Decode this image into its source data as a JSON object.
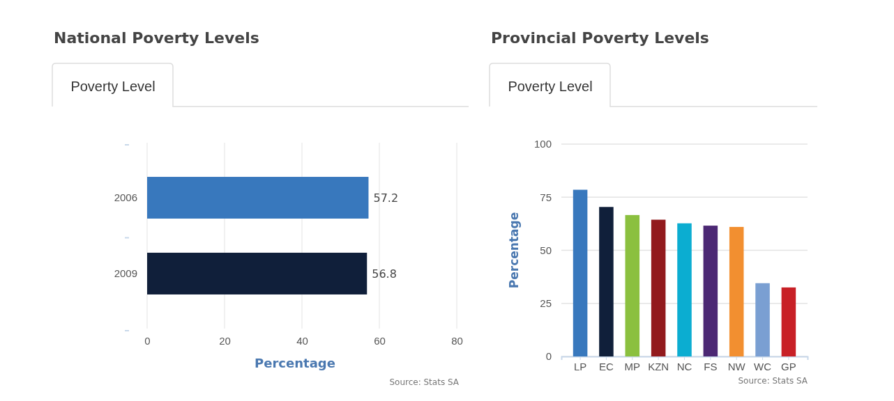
{
  "chart_data": [
    {
      "type": "bar",
      "title": "National Poverty Levels",
      "subtitle": "Poverty Level",
      "orientation": "horizontal",
      "categories": [
        "2006",
        "2009"
      ],
      "values": [
        57.2,
        56.8
      ],
      "colors": [
        "#3878bd",
        "#101f3a"
      ],
      "xlim": [
        0,
        80
      ],
      "xticks": [
        0,
        20,
        40,
        60,
        80
      ],
      "xlabel": "Percentage",
      "grid": "x",
      "data_labels": true,
      "annotations": [
        "Source: Stats SA"
      ]
    },
    {
      "type": "bar",
      "title": "Provincial Poverty Levels",
      "subtitle": "Poverty Level",
      "categories": [
        "LP",
        "EC",
        "MP",
        "KZN",
        "NC",
        "FS",
        "NW",
        "WC",
        "GP"
      ],
      "values": [
        78.5,
        70.4,
        66.6,
        64.4,
        62.7,
        61.6,
        61.0,
        34.5,
        32.5
      ],
      "colors": [
        "#3878bd",
        "#101f3a",
        "#8bc03f",
        "#921a1d",
        "#0badd1",
        "#4c2874",
        "#f28f30",
        "#7a9fd2",
        "#c82026"
      ],
      "ylim": [
        0,
        100
      ],
      "yticks": [
        0,
        25,
        50,
        75,
        100
      ],
      "ylabel": "Percentage",
      "grid": "y",
      "annotations": [
        "Source: Stats SA"
      ]
    }
  ]
}
